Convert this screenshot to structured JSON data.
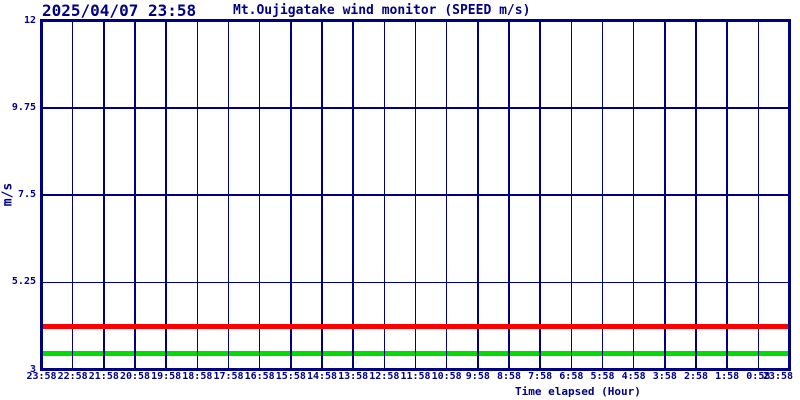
{
  "colors": {
    "axis_and_text": "#000080",
    "background": "#ffffff",
    "red_line": "#ff0000",
    "green_line": "#00dd00"
  },
  "chart_data": {
    "type": "line",
    "timestamp": "2025/04/07 23:58",
    "title": "Mt.Oujigatake wind monitor (SPEED m/s)",
    "xlabel": "Time elapsed (Hour)",
    "ylabel": "m/s",
    "ylim": [
      3,
      12
    ],
    "grid": true,
    "grid_color": "#000080",
    "legend": "none",
    "y_ticks": [
      {
        "label": "12",
        "value": 12
      },
      {
        "label": "9.75",
        "value": 9.75
      },
      {
        "label": "7.5",
        "value": 7.5
      },
      {
        "label": "5.25",
        "value": 5.25
      },
      {
        "label": "3",
        "value": 3
      }
    ],
    "x_tick_labels": [
      "23:58",
      "22:58",
      "21:58",
      "20:58",
      "19:58",
      "18:58",
      "17:58",
      "16:58",
      "15:58",
      "14:58",
      "13:58",
      "12:58",
      "11:58",
      "10:58",
      "9:58",
      "8:58",
      "7:58",
      "6:58",
      "5:58",
      "4:58",
      "3:58",
      "2:58",
      "1:58",
      "0:58",
      "23:58"
    ],
    "x_intervals": 24,
    "series": [
      {
        "name": "green-line",
        "color": "#00dd00",
        "constant_value": 3.4,
        "description": "flat horizontal green line at ~3.4 m/s across all 24 hours"
      },
      {
        "name": "red-line",
        "color": "#ff0000",
        "constant_value": 4.1,
        "description": "flat horizontal red line at ~4.1 m/s across all 24 hours"
      }
    ]
  }
}
